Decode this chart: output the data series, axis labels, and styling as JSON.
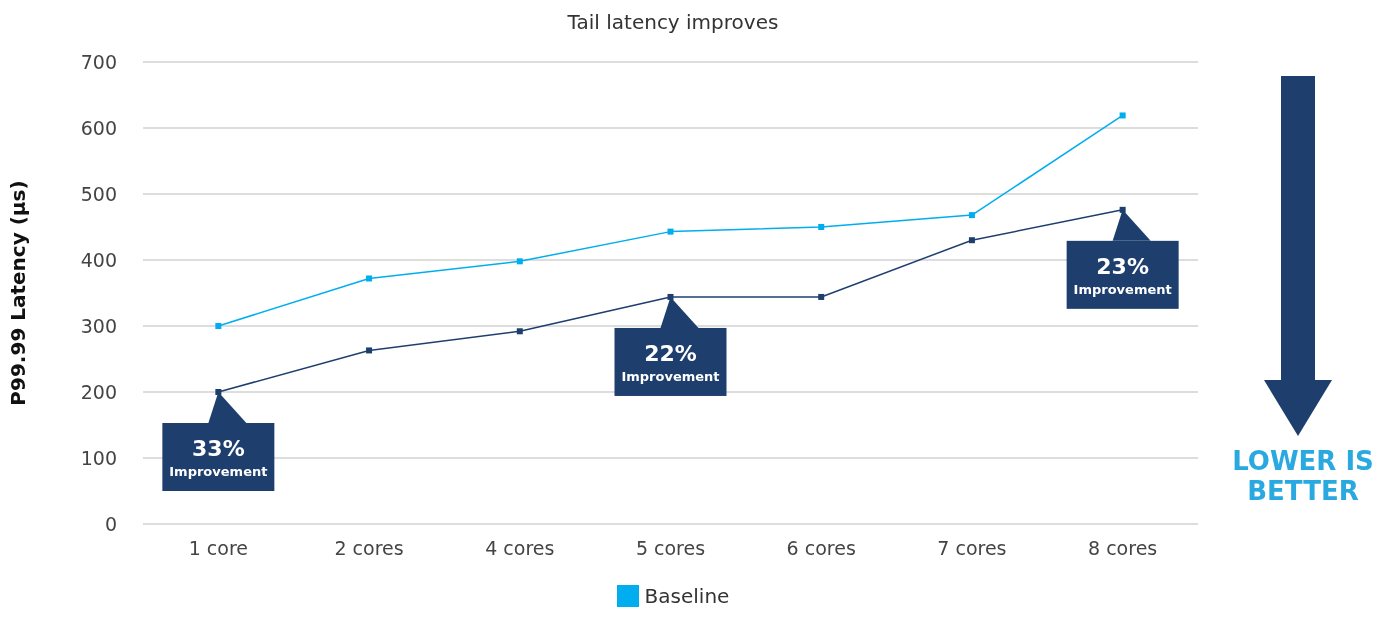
{
  "chart_data": {
    "type": "line",
    "title": "Tail latency improves",
    "ylabel": "P99.99 Latency (µs)",
    "categories": [
      "1 core",
      "2 cores",
      "4 cores",
      "5 cores",
      "6 cores",
      "7 cores",
      "8 cores"
    ],
    "series": [
      {
        "name": "Baseline",
        "color": "#00aeef",
        "values": [
          300,
          372,
          398,
          443,
          450,
          468,
          619
        ]
      },
      {
        "color": "#1e3f6e",
        "values": [
          200,
          263,
          292,
          344,
          344,
          430,
          476
        ]
      }
    ],
    "ylim": [
      0,
      700
    ],
    "yticks": [
      0,
      100,
      200,
      300,
      400,
      500,
      600,
      700
    ],
    "grid": "y",
    "legend": "bottom",
    "marker": "square",
    "line_style": "solid",
    "annotations": [
      {
        "text": "33% Improvement",
        "x": "1 core",
        "y": 200
      },
      {
        "text": "22% Improvement",
        "x": "5 cores",
        "y": 344
      },
      {
        "text": "23% Improvement",
        "x": "8 cores",
        "y": 476
      },
      "LOWER IS BETTER"
    ]
  }
}
